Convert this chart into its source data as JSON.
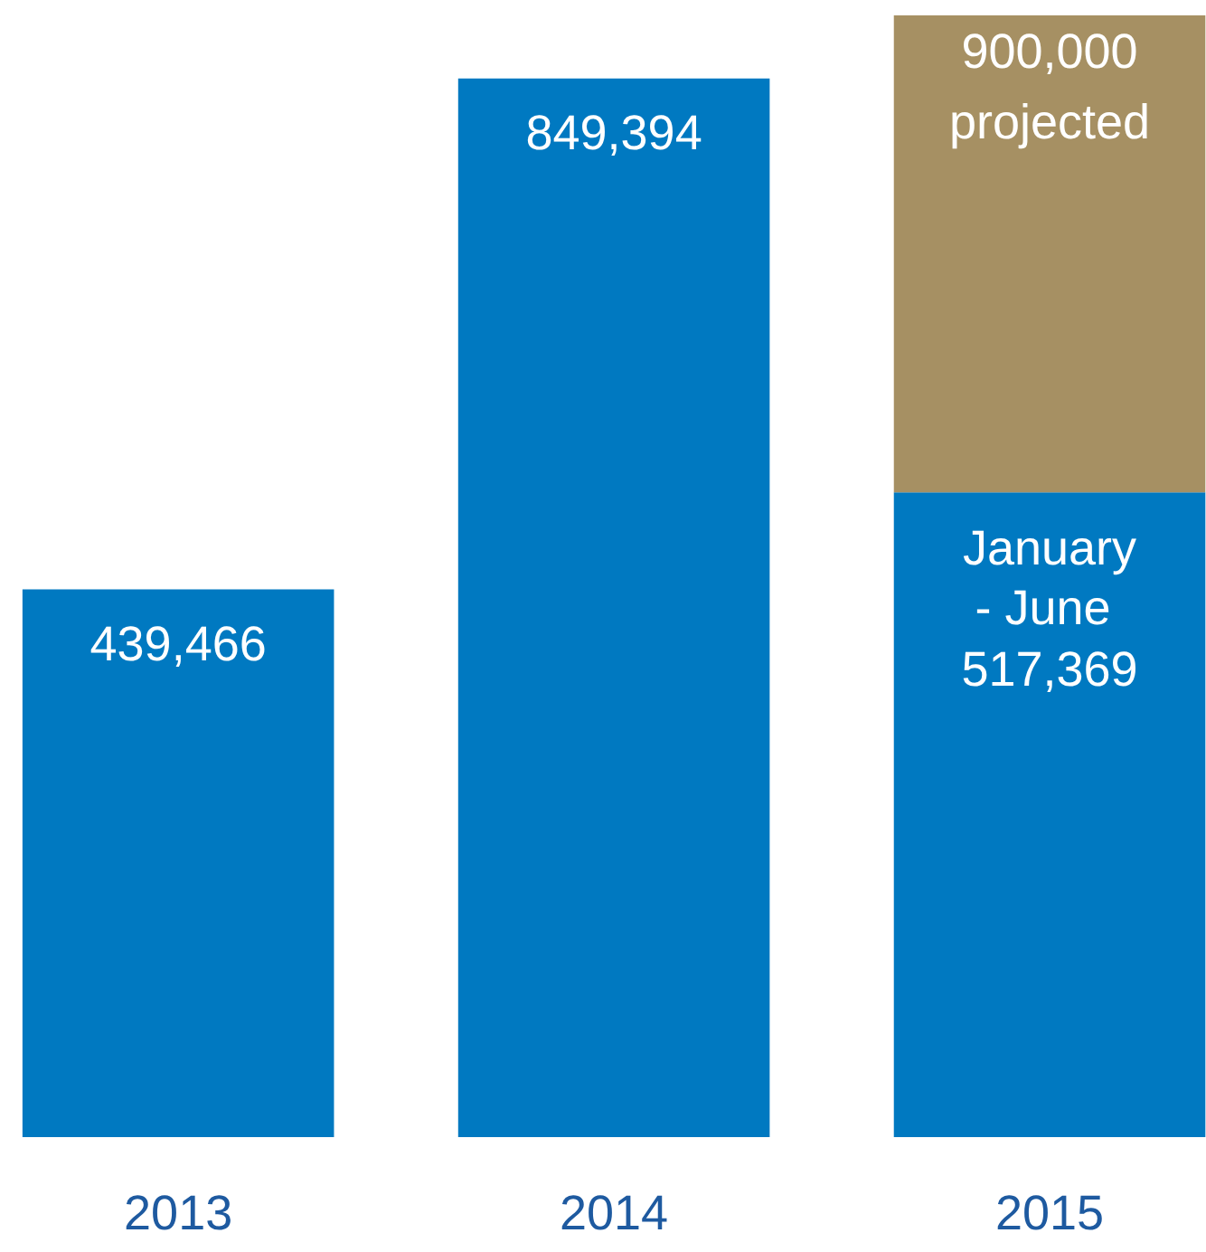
{
  "chart_data": {
    "type": "bar",
    "stacked": true,
    "categories": [
      "2013",
      "2014",
      "2015"
    ],
    "series": [
      {
        "color": "#0079c1",
        "values": [
          439466,
          849394,
          517369
        ],
        "value_labels": [
          "439,466",
          "849,394",
          "517,369"
        ]
      },
      {
        "color": "#a69063",
        "values": [
          null,
          null,
          382631
        ]
      }
    ],
    "totals": [
      null,
      null,
      "900,000"
    ],
    "annotations": [
      {
        "text": "January\n - June",
        "x": "2015",
        "y": 517369
      },
      {
        "text": "projected",
        "x": "2015",
        "y": 900000
      }
    ],
    "grid": false
  }
}
